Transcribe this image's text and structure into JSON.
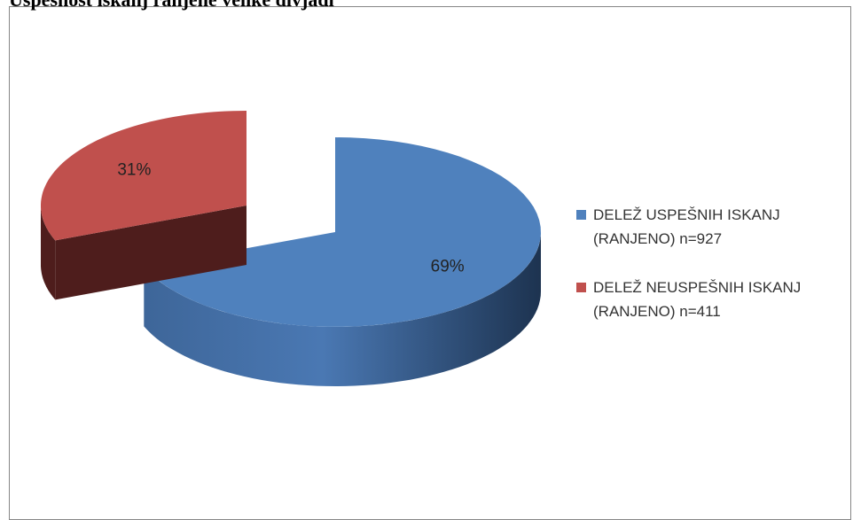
{
  "chart_data": {
    "type": "pie",
    "title": "Uspešnost iskanj ranjene velike divjadi",
    "categories": [
      "DELEŽ USPEŠNIH ISKANJ (RANJENO) n=927",
      "DELEŽ NEUSPEŠNIH ISKANJ (RANJENO) n=411"
    ],
    "values": [
      69,
      31
    ],
    "value_labels": [
      "69%",
      "31%"
    ],
    "colors": [
      "#4f81bd",
      "#c0504d"
    ],
    "legend": "right",
    "exploded": [
      false,
      true
    ]
  }
}
